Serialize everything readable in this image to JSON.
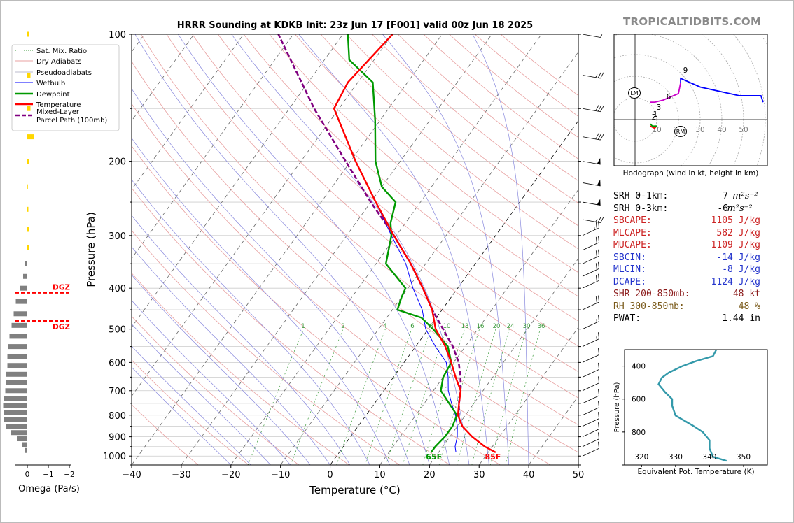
{
  "title": "HRRR Sounding at KDKB Init: 23z Jun 17 [F001] valid 00z Jun 18 2025",
  "brand": "TROPICALTIDBITS.COM",
  "colors": {
    "temperature": "#ff0000",
    "dewpoint": "#009900",
    "wetbulb": "#0000ff",
    "parcel": "#800080",
    "dgz": "#ff0000",
    "omega": "#808080",
    "omega_pos": "#ffd700",
    "theta_e": "#3399aa",
    "hodo_0_1": "#ff0000",
    "hodo_1_3": "#009900",
    "hodo_3_6": "#cc00cc",
    "hodo_6_9": "#0000ff"
  },
  "chart_data": [
    {
      "type": "line",
      "name": "skew-t",
      "xlabel": "Temperature (°C)",
      "ylabel": "Pressure (hPa)",
      "xlim": [
        -40,
        50
      ],
      "ylim": [
        1050,
        100
      ],
      "y_scale": "log",
      "x_ticks": [
        "−40",
        "−30",
        "−20",
        "−10",
        "0",
        "10",
        "20",
        "30",
        "40",
        "50"
      ],
      "y_ticks": [
        "100",
        "200",
        "300",
        "400",
        "500",
        "600",
        "700",
        "800",
        "900",
        "1000"
      ],
      "grid": true,
      "legend": {
        "position": "upper-left",
        "entries": [
          "Sat. Mix. Ratio",
          "Dry Adiabats",
          "Pseudoadiabats",
          "Wetbulb",
          "Dewpoint",
          "Temperature",
          "Mixed-Layer\nParcel Path (100mb)"
        ]
      },
      "mixing_ratio_labels": [
        "1",
        "2",
        "4",
        "6",
        "8",
        "10",
        "13",
        "16",
        "20",
        "24",
        "30",
        "36"
      ],
      "surface_labels": {
        "dewpoint": "65F",
        "temperature": "85F"
      },
      "series": [
        {
          "name": "Temperature",
          "p": [
            980,
            950,
            900,
            850,
            800,
            750,
            700,
            650,
            600,
            550,
            500,
            450,
            400,
            350,
            300,
            250,
            200,
            150,
            130,
            100
          ],
          "t": [
            31.5,
            28.5,
            24.5,
            21,
            18.5,
            17,
            15.5,
            12.5,
            9.5,
            6,
            1.5,
            -2,
            -7,
            -13,
            -20.5,
            -29,
            -39,
            -51,
            -52,
            -50
          ]
        },
        {
          "name": "Dewpoint",
          "p": [
            980,
            950,
            900,
            850,
            800,
            750,
            700,
            650,
            600,
            550,
            500,
            470,
            450,
            420,
            400,
            350,
            300,
            280,
            250,
            230,
            200,
            160,
            130,
            115,
            100
          ],
          "t": [
            18.5,
            18.5,
            19,
            19,
            18.3,
            15,
            11.5,
            10,
            9.5,
            6.5,
            1,
            -3,
            -9,
            -10,
            -10.5,
            -18,
            -21,
            -23,
            -25,
            -30,
            -35,
            -41,
            -47,
            -55,
            -59
          ]
        },
        {
          "name": "Wetbulb",
          "p": [
            980,
            950,
            900,
            850,
            800,
            750,
            700,
            650,
            600,
            550,
            500,
            450,
            400,
            350,
            300,
            250
          ],
          "t": [
            23.5,
            22.5,
            21.5,
            20,
            18,
            15.5,
            13,
            11,
            8.5,
            4,
            -0.5,
            -4,
            -9,
            -14,
            -21,
            -29
          ]
        },
        {
          "name": "Mixed-Layer Parcel Path (100mb)",
          "p": [
            810,
            750,
            700,
            650,
            600,
            550,
            500,
            450,
            400,
            350,
            300,
            250,
            200,
            150,
            100
          ],
          "t": [
            19,
            17,
            15.5,
            13.5,
            11,
            7.5,
            3,
            -2,
            -7,
            -13,
            -20.5,
            -30,
            -41,
            -55,
            -73
          ]
        }
      ],
      "dgz": {
        "top_hpa": 410,
        "bottom_hpa": 478,
        "label": "DGZ"
      },
      "wind_barbs": [
        {
          "p": 100,
          "speed_kt": 5
        },
        {
          "p": 125,
          "speed_kt": 25
        },
        {
          "p": 150,
          "speed_kt": 30
        },
        {
          "p": 175,
          "speed_kt": 30
        },
        {
          "p": 200,
          "speed_kt": 50
        },
        {
          "p": 225,
          "speed_kt": 50
        },
        {
          "p": 250,
          "speed_kt": 50
        },
        {
          "p": 275,
          "speed_kt": 25
        },
        {
          "p": 300,
          "speed_kt": 25
        },
        {
          "p": 325,
          "speed_kt": 20
        },
        {
          "p": 350,
          "speed_kt": 20
        },
        {
          "p": 375,
          "speed_kt": 20
        },
        {
          "p": 400,
          "speed_kt": 20
        },
        {
          "p": 450,
          "speed_kt": 20
        },
        {
          "p": 500,
          "speed_kt": 15
        },
        {
          "p": 550,
          "speed_kt": 15
        },
        {
          "p": 600,
          "speed_kt": 10
        },
        {
          "p": 650,
          "speed_kt": 10
        },
        {
          "p": 700,
          "speed_kt": 10
        },
        {
          "p": 750,
          "speed_kt": 10
        },
        {
          "p": 800,
          "speed_kt": 10
        },
        {
          "p": 850,
          "speed_kt": 10
        },
        {
          "p": 900,
          "speed_kt": 10
        },
        {
          "p": 950,
          "speed_kt": 10
        },
        {
          "p": 1000,
          "speed_kt": 10
        }
      ]
    },
    {
      "type": "bar",
      "name": "omega",
      "xlabel": "Omega (Pa/s)",
      "xlim": [
        0.5,
        -2
      ],
      "x_ticks": [
        "0",
        "−1",
        "−2"
      ],
      "p": [
        100,
        125,
        150,
        175,
        200,
        230,
        260,
        290,
        320,
        350,
        375,
        400,
        430,
        460,
        490,
        520,
        550,
        580,
        610,
        640,
        670,
        700,
        730,
        760,
        790,
        820,
        850,
        880,
        910,
        940,
        970
      ],
      "values": [
        0.1,
        0.15,
        0.15,
        0.3,
        0.1,
        0.0,
        0.05,
        0.1,
        0.1,
        -0.1,
        -0.2,
        -0.35,
        -0.55,
        -0.65,
        -0.75,
        -0.85,
        -0.9,
        -0.95,
        -0.95,
        -1.0,
        -1.0,
        -1.05,
        -1.1,
        -1.15,
        -1.1,
        -1.1,
        -1.0,
        -0.8,
        -0.5,
        -0.25,
        -0.1
      ]
    },
    {
      "type": "line",
      "name": "hodograph",
      "xlabel": "Hodograph (wind in kt, height in km)",
      "ring_labels": [
        "10",
        "20",
        "30",
        "40",
        "50"
      ],
      "height_labels": [
        "1",
        "2",
        "3",
        "6",
        "9"
      ],
      "markers": [
        "LM",
        "RM"
      ],
      "segments": [
        {
          "name": "0-1 km",
          "u": [
            7,
            9,
            10
          ],
          "v": [
            -3,
            -4,
            -3
          ]
        },
        {
          "name": "1-3 km",
          "u": [
            10,
            8,
            7
          ],
          "v": [
            -3,
            -3,
            -2
          ]
        },
        {
          "name": "3-6 km",
          "u": [
            7,
            9,
            13,
            20,
            21
          ],
          "v": [
            8,
            8,
            9,
            12,
            17
          ]
        },
        {
          "name": "6-9 km",
          "u": [
            21,
            21,
            30,
            48,
            58,
            59
          ],
          "v": [
            17,
            19,
            15,
            11,
            11,
            8
          ]
        }
      ]
    },
    {
      "type": "line",
      "name": "theta-e",
      "xlabel": "Equivalent Pot. Temperature (K)",
      "ylabel": "Pressure (hPa)",
      "xlim": [
        315,
        357
      ],
      "ylim": [
        1000,
        300
      ],
      "x_ticks": [
        "320",
        "330",
        "340",
        "350"
      ],
      "y_ticks": [
        "400",
        "600",
        "800"
      ],
      "series": [
        {
          "name": "theta-e",
          "p": [
            300,
            340,
            370,
            400,
            440,
            470,
            510,
            560,
            600,
            640,
            700,
            760,
            800,
            850,
            900,
            950,
            975
          ],
          "t": [
            342,
            341,
            336,
            332,
            328,
            326,
            325,
            327,
            329,
            329,
            330,
            335,
            338,
            340,
            340,
            341,
            345
          ]
        }
      ]
    }
  ],
  "hodograph_title": "Hodograph (wind in kt, height in km)",
  "stats": [
    {
      "label": "SRH 0-1km:",
      "value": "7",
      "unit_html": "m<tspan>2</tspan>s<tspan>-2</tspan>",
      "unit": "m²s⁻²",
      "color": "#000000"
    },
    {
      "label": "SRH 0-3km:",
      "value": "-6",
      "unit": "m²s⁻²",
      "color": "#000000"
    },
    {
      "label": "SBCAPE:",
      "value": "1105 J/kg",
      "color": "#cc2222"
    },
    {
      "label": "MLCAPE:",
      "value": "582 J/kg",
      "color": "#cc2222"
    },
    {
      "label": "MUCAPE:",
      "value": "1109 J/kg",
      "color": "#cc2222"
    },
    {
      "label": "SBCIN:",
      "value": "-14 J/kg",
      "color": "#2233cc"
    },
    {
      "label": "MLCIN:",
      "value": "-8 J/kg",
      "color": "#2233cc"
    },
    {
      "label": "DCAPE:",
      "value": "1124 J/kg",
      "color": "#2233cc"
    },
    {
      "label": "SHR 200-850mb:",
      "value": "48 kt",
      "color": "#8b1a1a"
    },
    {
      "label": "RH 300-850mb:",
      "value": "48 %",
      "color": "#7a5a1a"
    },
    {
      "label": "PWAT:",
      "value": "1.44 in",
      "color": "#000000"
    }
  ]
}
